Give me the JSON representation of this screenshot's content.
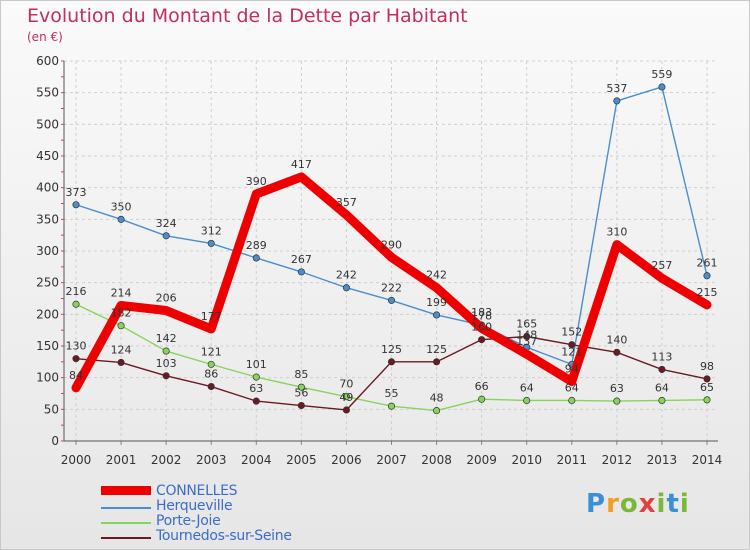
{
  "header": {
    "title": "Evolution du Montant de la Dette par Habitant",
    "subtitle": "(en €)"
  },
  "logo": {
    "text": "Proxiti"
  },
  "chart_data": {
    "type": "line",
    "title": "Evolution du Montant de la Dette par Habitant",
    "subtitle": "(en €)",
    "xlabel": "",
    "ylabel": "",
    "x": [
      "2000",
      "2001",
      "2002",
      "2003",
      "2004",
      "2005",
      "2006",
      "2007",
      "2008",
      "2009",
      "2010",
      "2011",
      "2012",
      "2013",
      "2014"
    ],
    "ylim": [
      0,
      600
    ],
    "yticks": [
      0,
      50,
      100,
      150,
      200,
      250,
      300,
      350,
      400,
      450,
      500,
      550,
      600
    ],
    "grid": true,
    "legend_position": "bottom-left",
    "series": [
      {
        "name": "Herqueville",
        "color": "#4a8ecb",
        "values": [
          373,
          350,
          324,
          312,
          289,
          267,
          242,
          222,
          199,
          183,
          148,
          121,
          537,
          559,
          261
        ],
        "labels": [
          "373",
          "350",
          "324",
          "312",
          "289",
          "267",
          "242",
          "222",
          "199",
          "183",
          "148",
          "121",
          "537",
          "559",
          "261"
        ]
      },
      {
        "name": "Porte-Joie",
        "color": "#86d45a",
        "values": [
          216,
          182,
          142,
          121,
          101,
          85,
          70,
          55,
          48,
          66,
          64,
          64,
          63,
          64,
          65
        ],
        "labels": [
          "216",
          "182",
          "142",
          "121",
          "101",
          "85",
          "70",
          "55",
          "48",
          "66",
          "64",
          "64",
          "63",
          "64",
          "65"
        ]
      },
      {
        "name": "Tournedos-sur-Seine",
        "color": "#6b1a22",
        "values": [
          130,
          124,
          103,
          86,
          63,
          56,
          49,
          125,
          125,
          160,
          165,
          152,
          140,
          113,
          98
        ],
        "labels": [
          "130",
          "124",
          "103",
          "86",
          "63",
          "56",
          "49",
          "125",
          "125",
          "160",
          "165",
          "152",
          "140",
          "113",
          "98"
        ]
      },
      {
        "name": "CONNELLES",
        "color": "#ee0000",
        "values": [
          84,
          214,
          206,
          177,
          390,
          417,
          357,
          290,
          242,
          178,
          137,
          94,
          310,
          257,
          215
        ],
        "labels": [
          "84",
          "214",
          "206",
          "177",
          "390",
          "417",
          "357",
          "290",
          "242",
          "178",
          "137",
          "94",
          "310",
          "257",
          "215"
        ]
      }
    ]
  },
  "legend": {
    "items": [
      {
        "label": "CONNELLES",
        "color": "#ee0000"
      },
      {
        "label": "Herqueville",
        "color": "#4a8ecb"
      },
      {
        "label": "Porte-Joie",
        "color": "#86d45a"
      },
      {
        "label": "Tournedos-sur-Seine",
        "color": "#6b1a22"
      }
    ]
  }
}
